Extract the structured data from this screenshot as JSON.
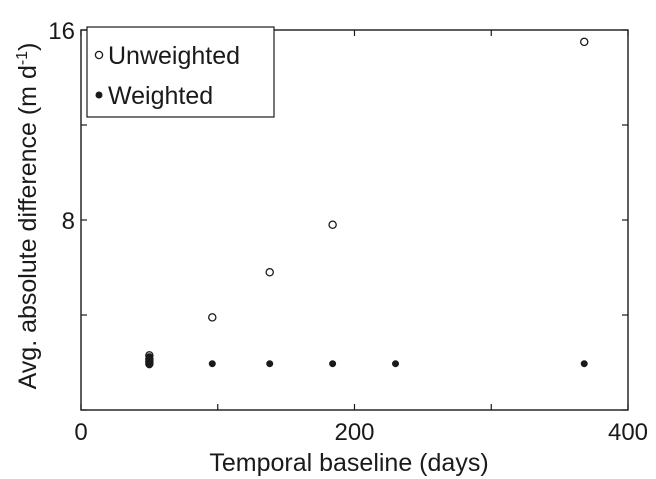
{
  "chart_data": {
    "type": "scatter",
    "xlabel": "Temporal baseline (days)",
    "ylabel_main": "Avg. absolute difference (m d",
    "ylabel_sup": "-1",
    "ylabel_close": ")",
    "xlim": [
      0,
      400
    ],
    "ylim": [
      0,
      16
    ],
    "xticks": [
      0,
      200,
      400
    ],
    "yticks": [
      0,
      8,
      16
    ],
    "xtick_labels": [
      "0",
      "200",
      "400"
    ],
    "ytick_labels": [
      "8",
      "16"
    ],
    "legend_position": "top-left",
    "grid": false,
    "series": [
      {
        "name": "Unweighted",
        "marker": "open-circle",
        "x": [
          50,
          50,
          50,
          50,
          96,
          138,
          184,
          368
        ],
        "y": [
          2.3,
          2.15,
          2.05,
          1.95,
          3.9,
          5.8,
          7.8,
          15.5
        ]
      },
      {
        "name": "Weighted",
        "marker": "filled-circle",
        "x": [
          50,
          50,
          50,
          50,
          96,
          138,
          184,
          230,
          368
        ],
        "y": [
          2.25,
          2.1,
          2.0,
          1.9,
          1.95,
          1.95,
          1.95,
          1.95,
          1.95
        ]
      }
    ]
  }
}
